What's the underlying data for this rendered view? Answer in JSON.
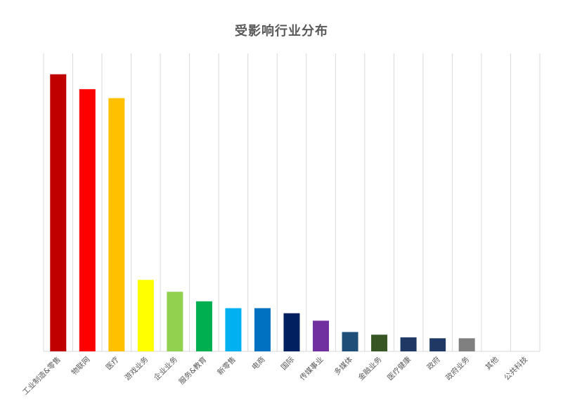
{
  "chart_data": {
    "type": "bar",
    "title": "受影响行业分布",
    "xlabel": "",
    "ylabel": "",
    "grid": "vertical",
    "legend": "none",
    "categories": [
      "工业制造&零售",
      "物联网",
      "医疗",
      "游戏业务",
      "企业业务",
      "服务&教育",
      "新零售",
      "电商",
      "国际",
      "传媒事业",
      "多媒体",
      "金融业务",
      "医疗健康",
      "政府",
      "政府业务",
      "其他",
      "公共科技"
    ],
    "values": [
      93,
      88,
      85,
      24,
      20,
      16.8,
      14.5,
      14.5,
      12.8,
      10.3,
      6.5,
      5.6,
      4.7,
      4.4,
      4.4,
      0,
      0
    ],
    "colors": [
      "#C00000",
      "#FF0000",
      "#FFC000",
      "#FFFF00",
      "#92D050",
      "#00B050",
      "#00B0F0",
      "#0070C0",
      "#002060",
      "#7030A0",
      "#1F4E79",
      "#375623",
      "#203864",
      "#203864",
      "#808080",
      "#A0A0A0",
      "#A0A0A0"
    ],
    "ylim": [
      0,
      100
    ]
  }
}
